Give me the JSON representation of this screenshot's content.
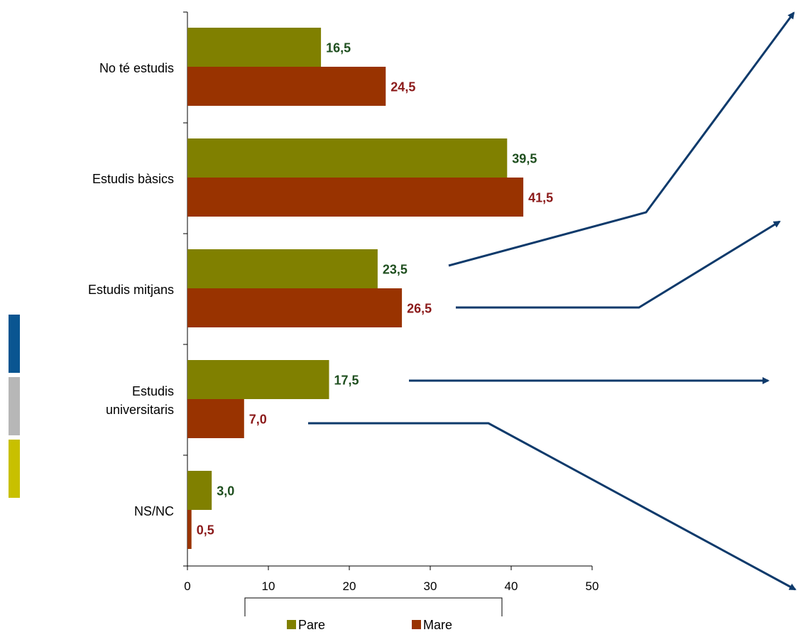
{
  "chart_data": {
    "type": "bar",
    "orientation": "horizontal",
    "categories": [
      "No té estudis",
      "Estudis bàsics",
      "Estudis mitjans",
      "Estudis universitaris",
      "NS/NC"
    ],
    "category_lines": [
      [
        "No té estudis"
      ],
      [
        "Estudis bàsics"
      ],
      [
        "Estudis mitjans"
      ],
      [
        "Estudis",
        "universitaris"
      ],
      [
        "NS/NC"
      ]
    ],
    "series": [
      {
        "name": "Pare",
        "values": [
          16.5,
          39.5,
          23.5,
          17.5,
          3.0
        ],
        "labels": [
          "16,5",
          "39,5",
          "23,5",
          "17,5",
          "3,0"
        ],
        "color": "#808000",
        "label_color": "#1f4f1f"
      },
      {
        "name": "Mare",
        "values": [
          24.5,
          41.5,
          26.5,
          7.0,
          0.5
        ],
        "labels": [
          "24,5",
          "41,5",
          "26,5",
          "7,0",
          "0,5"
        ],
        "color": "#993300",
        "label_color": "#8b1a1a"
      }
    ],
    "xlim": [
      0,
      50
    ],
    "xticks": [
      0,
      10,
      20,
      30,
      40,
      50
    ],
    "xticklabels": [
      "0",
      "10",
      "20",
      "30",
      "40",
      "50"
    ],
    "title": "",
    "xlabel": "",
    "ylabel": "",
    "grid": false,
    "legend": {
      "position": "bottom",
      "entries": [
        "Pare",
        "Mare"
      ]
    },
    "arrow_color": "#0e3a6b",
    "side_bar_colors": [
      "#0a5591",
      "#b7b7b7",
      "#c8c000"
    ]
  }
}
